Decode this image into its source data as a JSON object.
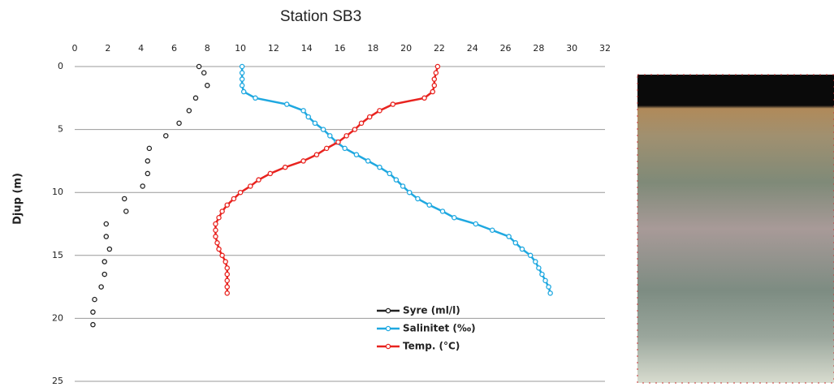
{
  "chart_data": {
    "type": "scatter",
    "title": "Station SB3",
    "y_label": "Djup (m)",
    "xlim": [
      0,
      32
    ],
    "xticks": [
      0,
      2,
      4,
      6,
      8,
      10,
      12,
      14,
      16,
      18,
      20,
      22,
      24,
      26,
      28,
      30,
      32
    ],
    "ylim": [
      0,
      25
    ],
    "yticks": [
      0,
      5,
      10,
      15,
      20,
      25
    ],
    "y_reversed": true,
    "grid": true,
    "series": [
      {
        "name": "Syre (ml/l)",
        "color": "#222222",
        "line": false,
        "x": [
          7.5,
          7.8,
          8.0,
          7.3,
          6.9,
          6.3,
          5.5,
          4.5,
          4.4,
          4.4,
          4.1,
          3.0,
          3.1,
          1.9,
          1.9,
          2.1,
          1.8,
          1.8,
          1.6,
          1.2,
          1.1,
          1.1
        ],
        "y": [
          0,
          0.5,
          1.5,
          2.5,
          3.5,
          4.5,
          5.5,
          6.5,
          7.5,
          8.5,
          9.5,
          10.5,
          11.5,
          12.5,
          13.5,
          14.5,
          15.5,
          16.5,
          17.5,
          18.5,
          19.5,
          20.5
        ]
      },
      {
        "name": "Salinitet (‰)",
        "color": "#1fa8e0",
        "line": true,
        "x": [
          10.1,
          10.1,
          10.1,
          10.1,
          10.2,
          10.9,
          12.8,
          13.8,
          14.1,
          14.5,
          15.0,
          15.4,
          15.8,
          16.3,
          17.0,
          17.7,
          18.4,
          19.0,
          19.4,
          19.8,
          20.2,
          20.7,
          21.4,
          22.2,
          22.9,
          24.2,
          25.2,
          26.2,
          26.6,
          27.0,
          27.5,
          27.8,
          28.0,
          28.2,
          28.4,
          28.6,
          28.7
        ],
        "y": [
          0,
          0.5,
          1,
          1.5,
          2,
          2.5,
          3,
          3.5,
          4,
          4.5,
          5,
          5.5,
          6,
          6.5,
          7,
          7.5,
          8,
          8.5,
          9,
          9.5,
          10,
          10.5,
          11,
          11.5,
          12,
          12.5,
          13,
          13.5,
          14,
          14.5,
          15,
          15.5,
          16,
          16.5,
          17,
          17.5,
          18
        ]
      },
      {
        "name": "Temp. (°C)",
        "color": "#e8231f",
        "line": true,
        "x": [
          21.9,
          21.8,
          21.7,
          21.7,
          21.6,
          21.1,
          19.2,
          18.4,
          17.8,
          17.3,
          16.9,
          16.4,
          15.9,
          15.2,
          14.6,
          13.8,
          12.7,
          11.8,
          11.1,
          10.6,
          10.0,
          9.6,
          9.2,
          8.9,
          8.7,
          8.5,
          8.5,
          8.5,
          8.6,
          8.7,
          8.9,
          9.1,
          9.2,
          9.2,
          9.2,
          9.2,
          9.2
        ],
        "y": [
          0,
          0.5,
          1,
          1.5,
          2,
          2.5,
          3,
          3.5,
          4,
          4.5,
          5,
          5.5,
          6,
          6.5,
          7,
          7.5,
          8,
          8.5,
          9,
          9.5,
          10,
          10.5,
          11,
          11.5,
          12,
          12.5,
          13,
          13.5,
          14,
          14.5,
          15,
          15.5,
          16,
          16.5,
          17,
          17.5,
          18
        ]
      }
    ]
  }
}
